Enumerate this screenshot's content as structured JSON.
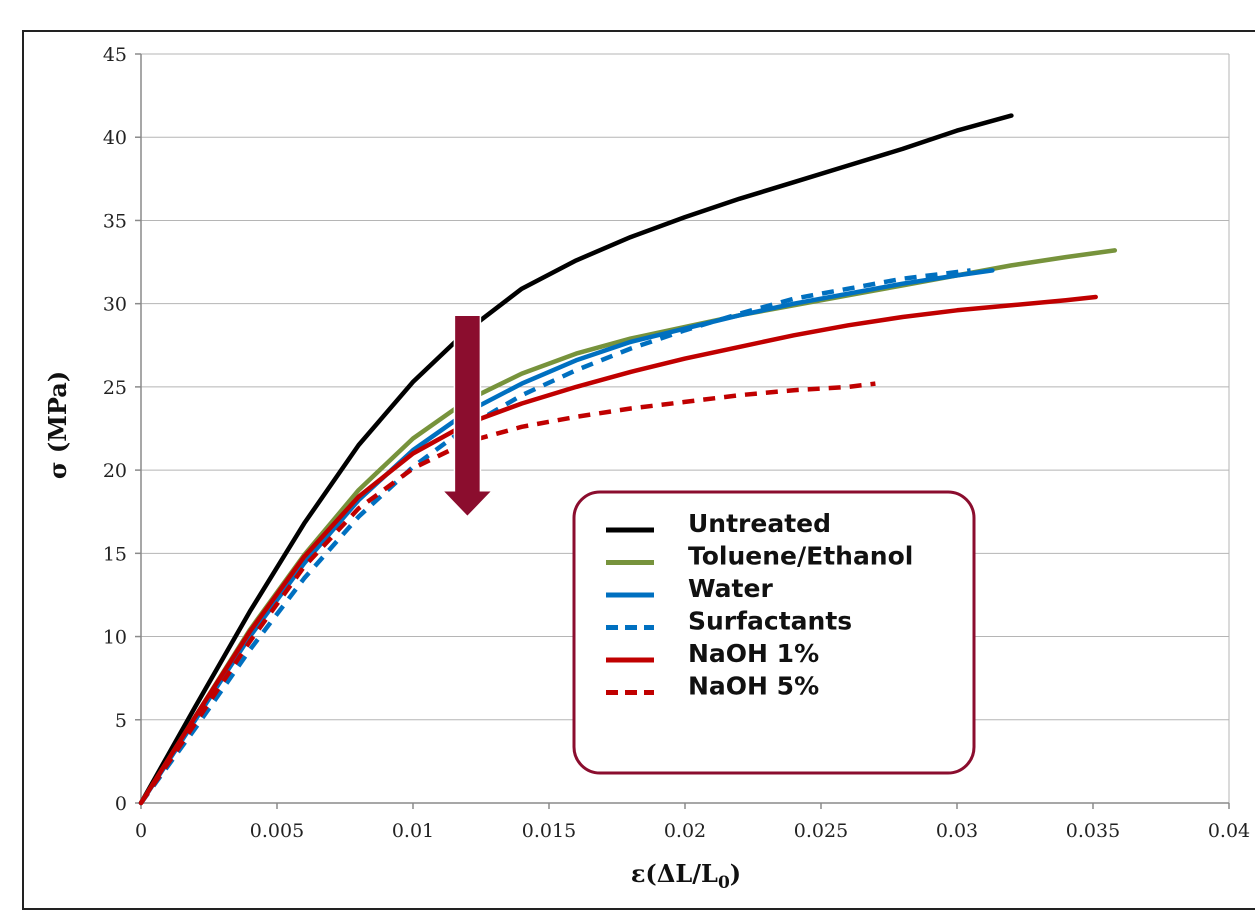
{
  "chart_data": {
    "type": "line",
    "title": "",
    "xlabel": "ε(ΔL/L0)",
    "ylabel": "σ (MPa)",
    "xlim": [
      0,
      0.04
    ],
    "ylim": [
      0,
      45
    ],
    "xticks": [
      0,
      0.005,
      0.01,
      0.015,
      0.02,
      0.025,
      0.03,
      0.035,
      0.04
    ],
    "xtick_labels": [
      "0",
      "0.005",
      "0.01",
      "0.015",
      "0.02",
      "0.025",
      "0.03",
      "0.035",
      "0.04"
    ],
    "yticks": [
      0,
      5,
      10,
      15,
      20,
      25,
      30,
      35,
      40,
      45
    ],
    "ytick_labels": [
      "0",
      "5",
      "10",
      "15",
      "20",
      "25",
      "30",
      "35",
      "40",
      "45"
    ],
    "grid": "horizontal",
    "legend_position": "bottom-right",
    "series": [
      {
        "name": "Untreated",
        "color": "#000000",
        "dash": "solid",
        "x": [
          0,
          0.002,
          0.004,
          0.006,
          0.008,
          0.01,
          0.012,
          0.014,
          0.016,
          0.018,
          0.02,
          0.022,
          0.024,
          0.026,
          0.028,
          0.03,
          0.032
        ],
        "y": [
          0,
          5.8,
          11.5,
          16.8,
          21.5,
          25.3,
          28.4,
          30.9,
          32.6,
          34.0,
          35.2,
          36.3,
          37.3,
          38.3,
          39.3,
          40.4,
          41.3
        ]
      },
      {
        "name": "Toluene/Ethanol",
        "color": "#77933C",
        "dash": "solid",
        "x": [
          0,
          0.002,
          0.004,
          0.006,
          0.008,
          0.01,
          0.012,
          0.014,
          0.016,
          0.018,
          0.02,
          0.022,
          0.024,
          0.026,
          0.028,
          0.03,
          0.032,
          0.034,
          0.0358
        ],
        "y": [
          0,
          5.2,
          10.4,
          14.9,
          18.8,
          21.9,
          24.2,
          25.8,
          27.0,
          27.9,
          28.6,
          29.3,
          29.9,
          30.5,
          31.1,
          31.7,
          32.3,
          32.8,
          33.2
        ]
      },
      {
        "name": "Water",
        "color": "#0070C0",
        "dash": "solid",
        "x": [
          0,
          0.002,
          0.004,
          0.006,
          0.008,
          0.01,
          0.012,
          0.014,
          0.016,
          0.018,
          0.02,
          0.022,
          0.024,
          0.026,
          0.028,
          0.03,
          0.0313
        ],
        "y": [
          0,
          5.0,
          10.0,
          14.4,
          18.2,
          21.2,
          23.5,
          25.2,
          26.6,
          27.7,
          28.5,
          29.3,
          30.0,
          30.6,
          31.2,
          31.7,
          32.0
        ]
      },
      {
        "name": "Surfactants",
        "color": "#0070C0",
        "dash": "dashed",
        "x": [
          0,
          0.002,
          0.004,
          0.006,
          0.008,
          0.01,
          0.012,
          0.014,
          0.016,
          0.018,
          0.02,
          0.022,
          0.024,
          0.026,
          0.028,
          0.0305
        ],
        "y": [
          0,
          4.5,
          9.2,
          13.5,
          17.2,
          20.2,
          22.6,
          24.5,
          26.0,
          27.3,
          28.4,
          29.4,
          30.3,
          30.9,
          31.5,
          32.0
        ]
      },
      {
        "name": "NaOH 1%",
        "color": "#C00000",
        "dash": "solid",
        "x": [
          0,
          0.002,
          0.004,
          0.006,
          0.008,
          0.01,
          0.012,
          0.014,
          0.016,
          0.018,
          0.02,
          0.022,
          0.024,
          0.026,
          0.028,
          0.03,
          0.032,
          0.034,
          0.0351
        ],
        "y": [
          0,
          5.2,
          10.3,
          14.8,
          18.4,
          21.0,
          22.8,
          24.0,
          25.0,
          25.9,
          26.7,
          27.4,
          28.1,
          28.7,
          29.2,
          29.6,
          29.9,
          30.2,
          30.4
        ]
      },
      {
        "name": "NaOH 5%",
        "color": "#C00000",
        "dash": "dashed",
        "x": [
          0,
          0.002,
          0.004,
          0.006,
          0.008,
          0.01,
          0.012,
          0.014,
          0.016,
          0.018,
          0.02,
          0.022,
          0.024,
          0.026,
          0.027
        ],
        "y": [
          0,
          4.8,
          9.7,
          14.2,
          17.7,
          20.1,
          21.7,
          22.6,
          23.2,
          23.7,
          24.1,
          24.5,
          24.8,
          25.0,
          25.2
        ]
      }
    ],
    "annotation": {
      "type": "arrow",
      "direction": "down",
      "color": "#8B0D2E",
      "x": 0.012,
      "y_from": 29.3,
      "y_to": 17.2
    }
  }
}
